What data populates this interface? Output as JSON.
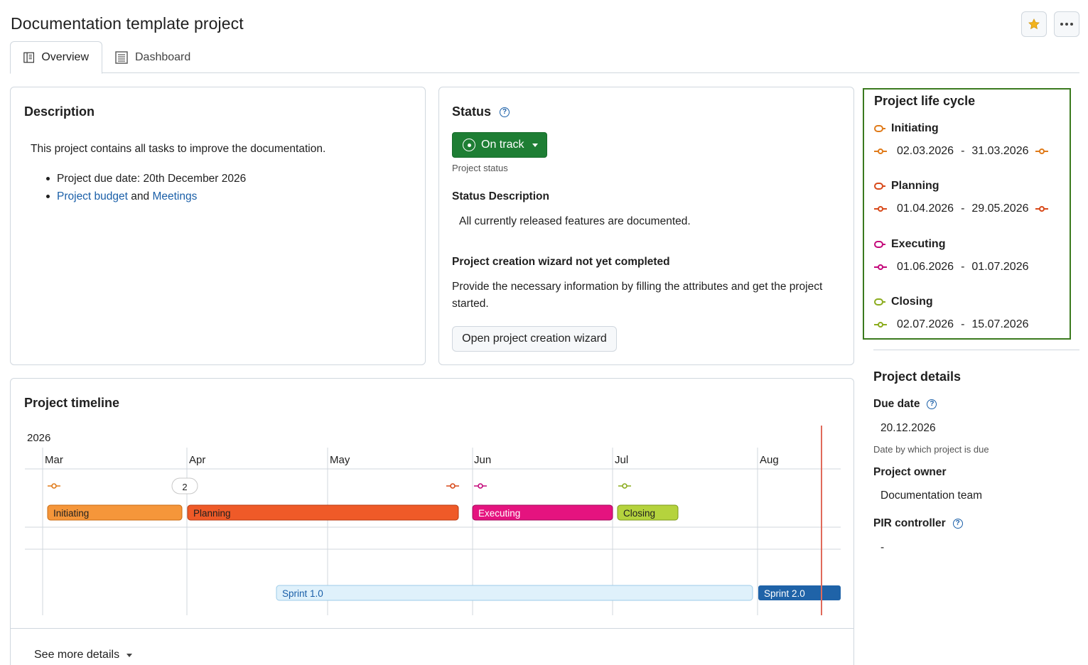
{
  "header": {
    "title": "Documentation template project",
    "favorite_icon": "star-icon",
    "more_icon": "more-horizontal-icon"
  },
  "tabs": [
    {
      "label": "Overview",
      "icon": "overview-icon",
      "active": true
    },
    {
      "label": "Dashboard",
      "icon": "dashboard-icon",
      "active": false
    }
  ],
  "description": {
    "title": "Description",
    "text": "This project contains all tasks to improve the documentation.",
    "bullet1": "Project due date: 20th December 2026",
    "link_budget": "Project budget",
    "and_word": "and",
    "link_meetings": "Meetings"
  },
  "status": {
    "title": "Status",
    "value": "On track",
    "caption": "Project status",
    "desc_label": "Status Description",
    "desc_text": "All currently released features are documented.",
    "wizard_title": "Project creation wizard not yet completed",
    "wizard_text": "Provide the necessary information by filling the attributes and get the project started.",
    "wizard_button": "Open project creation wizard",
    "color": "#1e7e34"
  },
  "lifecycle": {
    "title": "Project life cycle",
    "phases": [
      {
        "name": "Initiating",
        "start": "02.03.2026",
        "sep": "-",
        "end": "31.03.2026",
        "color": "#e07b1a"
      },
      {
        "name": "Planning",
        "start": "01.04.2026",
        "sep": "-",
        "end": "29.05.2026",
        "color": "#d84a1b"
      },
      {
        "name": "Executing",
        "start": "01.06.2026",
        "sep": "-",
        "end": "01.07.2026",
        "color": "#c4087a"
      },
      {
        "name": "Closing",
        "start": "02.07.2026",
        "sep": "-",
        "end": "15.07.2026",
        "color": "#8bac1e"
      }
    ]
  },
  "details": {
    "title": "Project details",
    "due_label": "Due date",
    "due_value": "20.12.2026",
    "due_hint": "Date by which project is due",
    "owner_label": "Project owner",
    "owner_value": "Documentation team",
    "pir_label": "PIR controller",
    "pir_value": "-"
  },
  "timeline": {
    "title": "Project timeline",
    "year": "2026",
    "months": [
      "Mar",
      "Apr",
      "May",
      "Jun",
      "Jul",
      "Aug"
    ],
    "cluster_count": "2",
    "phases": [
      {
        "name": "Initiating",
        "color": "#f5963a",
        "border": "#c96b12",
        "text": "#1f1f1f"
      },
      {
        "name": "Planning",
        "color": "#ef5a28",
        "border": "#b83a10",
        "text": "#1f1f1f"
      },
      {
        "name": "Executing",
        "color": "#e5137f",
        "border": "#a00a58",
        "text": "#ffffff"
      },
      {
        "name": "Closing",
        "color": "#b5d33d",
        "border": "#7c9a1a",
        "text": "#1f1f1f"
      }
    ],
    "sprints": [
      {
        "name": "Sprint 1.0",
        "color": "#dff1fb",
        "text": "#1a5fa8"
      },
      {
        "name": "Sprint 2.0",
        "color": "#1f63a8",
        "text": "#ffffff"
      }
    ],
    "see_more": "See more details"
  }
}
